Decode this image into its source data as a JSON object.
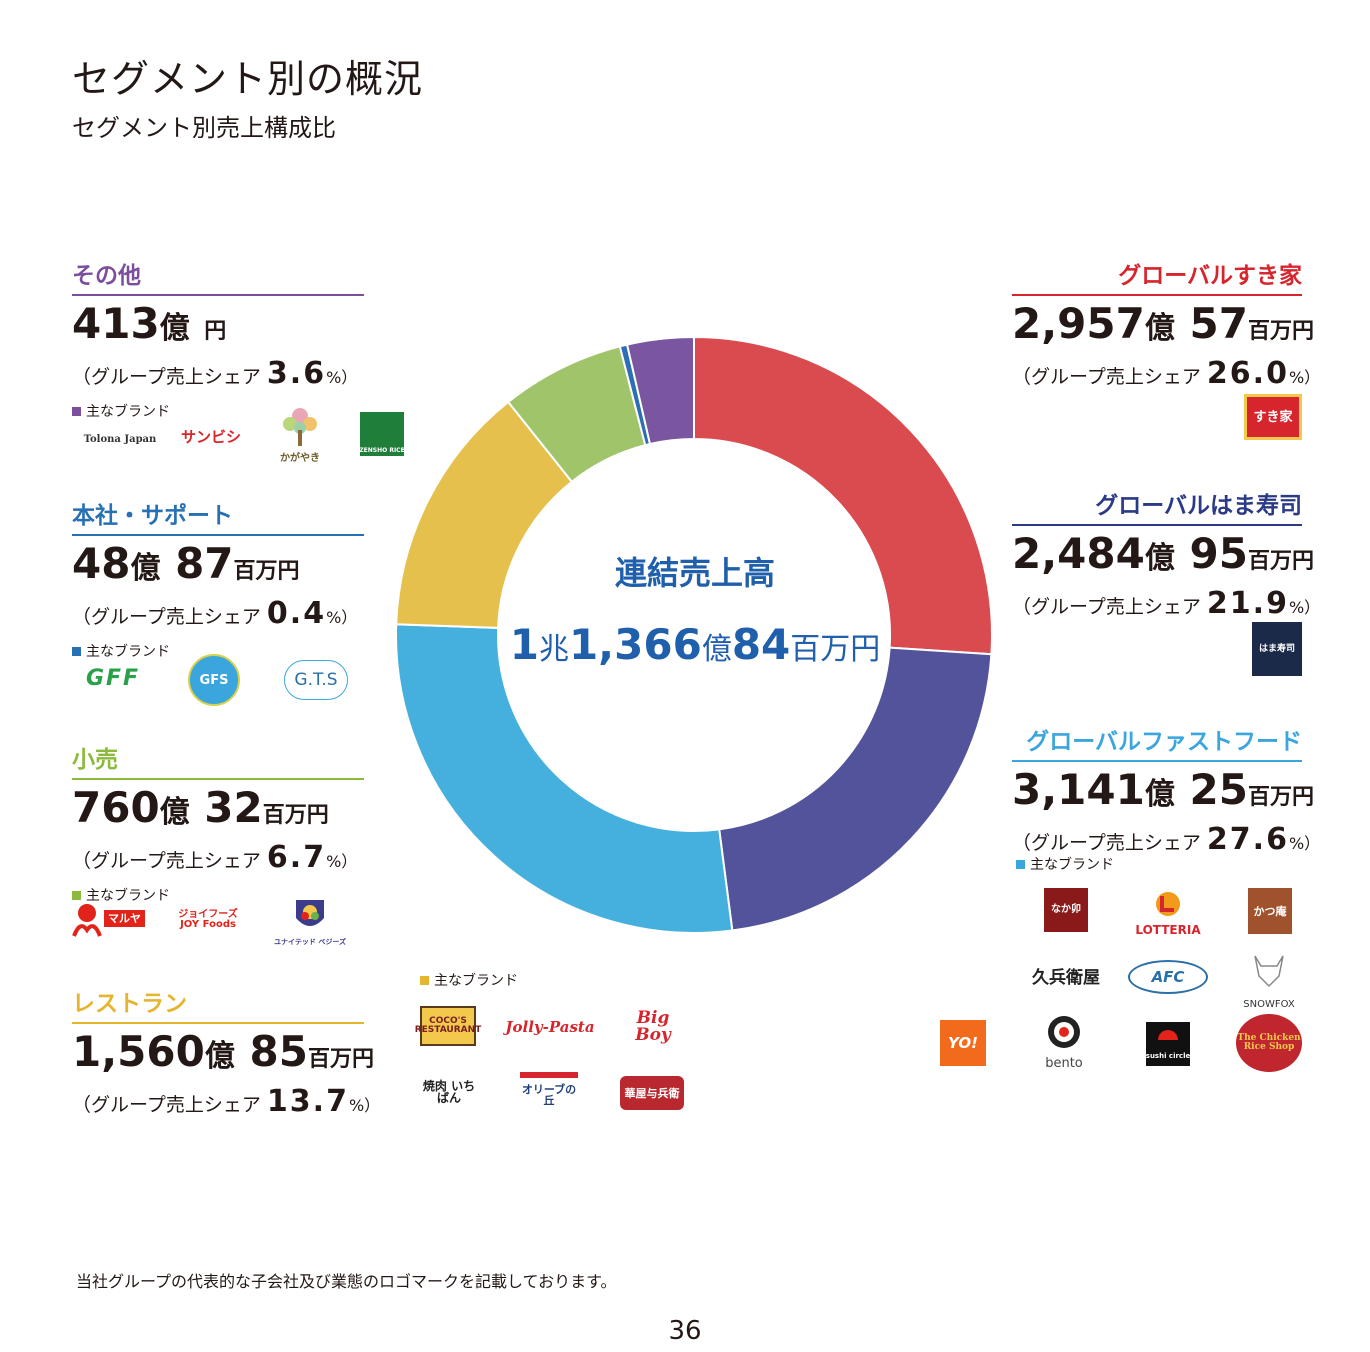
{
  "header": {
    "title": "セグメント別の概況",
    "subtitle": "セグメント別売上構成比"
  },
  "center": {
    "title": "連結売上高",
    "n1": "1",
    "u1": "兆",
    "n2": "1,366",
    "u2": "億",
    "n3": "84",
    "u3": "百万円"
  },
  "share_prefix": "（グループ売上シェア",
  "share_suffix": "%）",
  "brands_label": "主なブランド",
  "segments": {
    "other": {
      "name": "その他",
      "n1": "413",
      "u1": "億",
      "n2": "",
      "u2": "円",
      "share": "3.6",
      "color": "#7b4f9d",
      "brands": [
        "Tolona Japan",
        "サンビシ",
        "かがやき",
        "ZENSHO RICE"
      ]
    },
    "hq": {
      "name": "本社・サポート",
      "n1": "48",
      "u1": "億",
      "n2": "87",
      "u2": "百万円",
      "share": "0.4",
      "color": "#2770b3",
      "brands": [
        "GFF",
        "GFS",
        "G.T.S"
      ]
    },
    "retail": {
      "name": "小売",
      "n1": "760",
      "u1": "億",
      "n2": "32",
      "u2": "百万円",
      "share": "6.7",
      "color": "#8cba3d",
      "brands": [
        "マルヤ",
        "ジョイフーズ JOY Foods",
        "ユナイテッド ベジーズ"
      ]
    },
    "restaurant": {
      "name": "レストラン",
      "n1": "1,560",
      "u1": "億",
      "n2": "85",
      "u2": "百万円",
      "share": "13.7",
      "color": "#e5b52e",
      "brands": [
        "COCO'S RESTAURANT",
        "Jolly-Pasta",
        "Big Boy",
        "焼肉 いちばん",
        "オリーブの丘",
        "華屋与兵衛"
      ]
    },
    "sukiya": {
      "name": "グローバルすき家",
      "n1": "2,957",
      "u1": "億",
      "n2": "57",
      "u2": "百万円",
      "share": "26.0",
      "color": "#d7252d",
      "brands": [
        "すき家"
      ]
    },
    "hama": {
      "name": "グローバルはま寿司",
      "n1": "2,484",
      "u1": "億",
      "n2": "95",
      "u2": "百万円",
      "share": "21.9",
      "color": "#2a3a86",
      "brands": [
        "はま寿司"
      ]
    },
    "fastfood": {
      "name": "グローバルファストフード",
      "n1": "3,141",
      "u1": "億",
      "n2": "25",
      "u2": "百万円",
      "share": "27.6",
      "color": "#3aa6dd",
      "brands": [
        "なか卯",
        "LOTTERIA",
        "かつ庵",
        "久兵衛屋",
        "AFC",
        "SNOWFOX",
        "YO!",
        "bento",
        "sushi circle",
        "The Chicken Rice Shop"
      ]
    }
  },
  "chart_data": {
    "type": "pie",
    "donut": true,
    "start": "top",
    "direction": "clockwise",
    "categories": [
      "グローバルすき家",
      "グローバルはま寿司",
      "グローバルファストフード",
      "レストラン",
      "小売",
      "本社・サポート",
      "その他"
    ],
    "values": [
      26.0,
      21.9,
      27.6,
      13.7,
      6.7,
      0.4,
      3.6
    ],
    "colors": [
      "#d94b4f",
      "#53539b",
      "#45b0de",
      "#e6c04c",
      "#9fc46a",
      "#2d6fb3",
      "#7b56a0"
    ]
  },
  "footnote": "当社グループの代表的な子会社及び業態のロゴマークを記載しております。",
  "page_number": "36"
}
